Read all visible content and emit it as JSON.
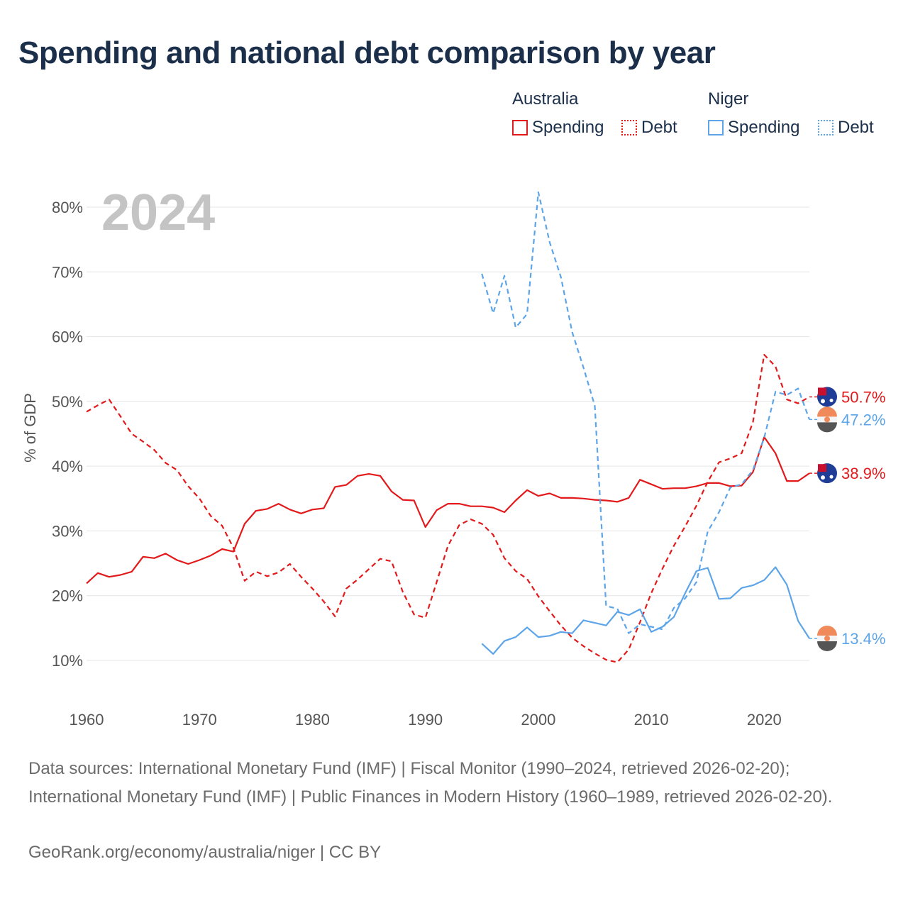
{
  "title": "Spending and national debt comparison by year",
  "legend": {
    "groups": [
      {
        "name": "Australia",
        "color": "#e31a1c",
        "items": [
          {
            "label": "Spending",
            "style": "solid"
          },
          {
            "label": "Debt",
            "style": "dotted"
          }
        ]
      },
      {
        "name": "Niger",
        "color": "#5da5e8",
        "items": [
          {
            "label": "Spending",
            "style": "solid"
          },
          {
            "label": "Debt",
            "style": "dotted"
          }
        ]
      }
    ]
  },
  "footer": {
    "sources": "Data sources: International Monetary Fund (IMF) | Fiscal Monitor (1990–2024, retrieved 2026-02-20); International Monetary Fund (IMF) | Public Finances in Modern History (1960–1989, retrieved 2026-02-20).",
    "credit": "GeoRank.org/economy/australia/niger | CC BY"
  },
  "chart_data": {
    "type": "line",
    "year_label": "2024",
    "ylabel": "% of GDP",
    "xlim": [
      1960,
      2024
    ],
    "ylim": [
      10,
      80
    ],
    "x_ticks": [
      1960,
      1970,
      1980,
      1990,
      2000,
      2010,
      2020
    ],
    "y_ticks": [
      10,
      20,
      30,
      40,
      50,
      60,
      70,
      80
    ],
    "y_tick_labels": [
      "10%",
      "20%",
      "30%",
      "40%",
      "50%",
      "60%",
      "70%",
      "80%"
    ],
    "series": [
      {
        "name": "Australia Debt",
        "country": "Australia",
        "metric": "Debt",
        "color": "#e31a1c",
        "dash": "dashed",
        "end_label": "50.7%",
        "x": [
          1960,
          1961,
          1962,
          1963,
          1964,
          1965,
          1966,
          1967,
          1968,
          1969,
          1970,
          1971,
          1972,
          1973,
          1974,
          1975,
          1976,
          1977,
          1978,
          1979,
          1980,
          1981,
          1982,
          1983,
          1984,
          1985,
          1986,
          1987,
          1988,
          1989,
          1990,
          1991,
          1992,
          1993,
          1994,
          1995,
          1996,
          1997,
          1998,
          1999,
          2000,
          2001,
          2002,
          2003,
          2004,
          2005,
          2006,
          2007,
          2008,
          2009,
          2010,
          2011,
          2012,
          2013,
          2014,
          2015,
          2016,
          2017,
          2018,
          2019,
          2020,
          2021,
          2022,
          2023,
          2024
        ],
        "values": [
          48.4,
          49.4,
          50.3,
          47.7,
          45.0,
          43.8,
          42.5,
          40.5,
          39.4,
          36.9,
          35.0,
          32.3,
          30.8,
          27.4,
          22.3,
          23.7,
          23.0,
          23.6,
          24.9,
          22.9,
          21.1,
          19.1,
          16.8,
          21.1,
          22.5,
          24.1,
          25.7,
          25.3,
          20.6,
          17.1,
          16.6,
          22.1,
          27.7,
          30.9,
          31.8,
          31.1,
          29.4,
          25.8,
          23.8,
          22.6,
          19.9,
          17.6,
          15.4,
          13.5,
          12.2,
          11.1,
          10.1,
          9.7,
          11.7,
          15.9,
          20.4,
          24.2,
          27.7,
          30.7,
          33.9,
          37.6,
          40.6,
          41.2,
          42.0,
          46.8,
          57.2,
          55.4,
          50.3,
          49.7,
          50.7
        ]
      },
      {
        "name": "Australia Spending",
        "country": "Australia",
        "metric": "Spending",
        "color": "#e31a1c",
        "dash": "solid",
        "end_label": "38.9%",
        "x": [
          1960,
          1961,
          1962,
          1963,
          1964,
          1965,
          1966,
          1967,
          1968,
          1969,
          1970,
          1971,
          1972,
          1973,
          1974,
          1975,
          1976,
          1977,
          1978,
          1979,
          1980,
          1981,
          1982,
          1983,
          1984,
          1985,
          1986,
          1987,
          1988,
          1989,
          1990,
          1991,
          1992,
          1993,
          1994,
          1995,
          1996,
          1997,
          1998,
          1999,
          2000,
          2001,
          2002,
          2003,
          2004,
          2005,
          2006,
          2007,
          2008,
          2009,
          2010,
          2011,
          2012,
          2013,
          2014,
          2015,
          2016,
          2017,
          2018,
          2019,
          2020,
          2021,
          2022,
          2023,
          2024
        ],
        "values": [
          21.9,
          23.5,
          22.9,
          23.2,
          23.7,
          26.0,
          25.8,
          26.5,
          25.5,
          24.9,
          25.5,
          26.2,
          27.2,
          26.8,
          31.1,
          33.1,
          33.4,
          34.2,
          33.3,
          32.7,
          33.3,
          33.5,
          36.8,
          37.1,
          38.5,
          38.8,
          38.5,
          36.1,
          34.8,
          34.7,
          30.6,
          33.2,
          34.2,
          34.2,
          33.8,
          33.8,
          33.6,
          32.9,
          34.7,
          36.3,
          35.4,
          35.8,
          35.1,
          35.1,
          35.0,
          34.8,
          34.7,
          34.5,
          35.1,
          37.9,
          37.2,
          36.5,
          36.6,
          36.6,
          36.9,
          37.4,
          37.4,
          36.9,
          37.0,
          39.1,
          44.5,
          42.0,
          37.7,
          37.7,
          38.9
        ]
      },
      {
        "name": "Niger Debt",
        "country": "Niger",
        "metric": "Debt",
        "color": "#5da5e8",
        "dash": "dashed",
        "end_label": "47.2%",
        "x": [
          1995,
          1996,
          1997,
          1998,
          1999,
          2000,
          2001,
          2002,
          2003,
          2004,
          2005,
          2006,
          2007,
          2008,
          2009,
          2010,
          2011,
          2012,
          2013,
          2014,
          2015,
          2016,
          2017,
          2018,
          2019,
          2020,
          2021,
          2022,
          2023,
          2024
        ],
        "values": [
          69.7,
          63.6,
          69.4,
          61.4,
          63.5,
          82.3,
          74.6,
          69.2,
          60.7,
          55.2,
          49.3,
          18.4,
          18.0,
          14.2,
          15.6,
          15.2,
          14.8,
          18.1,
          19.6,
          22.1,
          29.9,
          32.9,
          36.7,
          37.2,
          39.4,
          44.4,
          51.5,
          51.0,
          52.0,
          47.2
        ]
      },
      {
        "name": "Niger Spending",
        "country": "Niger",
        "metric": "Spending",
        "color": "#5da5e8",
        "dash": "solid",
        "end_label": "13.4%",
        "x": [
          1995,
          1996,
          1997,
          1998,
          1999,
          2000,
          2001,
          2002,
          2003,
          2004,
          2005,
          2006,
          2007,
          2008,
          2009,
          2010,
          2011,
          2012,
          2013,
          2014,
          2015,
          2016,
          2017,
          2018,
          2019,
          2020,
          2021,
          2022,
          2023,
          2024
        ],
        "values": [
          12.6,
          11.0,
          13.0,
          13.6,
          15.1,
          13.6,
          13.8,
          14.4,
          14.2,
          16.2,
          15.8,
          15.4,
          17.5,
          17.0,
          17.9,
          14.4,
          15.2,
          16.7,
          20.4,
          23.8,
          24.3,
          19.5,
          19.6,
          21.2,
          21.6,
          22.4,
          24.4,
          21.7,
          16.1,
          13.4
        ]
      }
    ]
  }
}
